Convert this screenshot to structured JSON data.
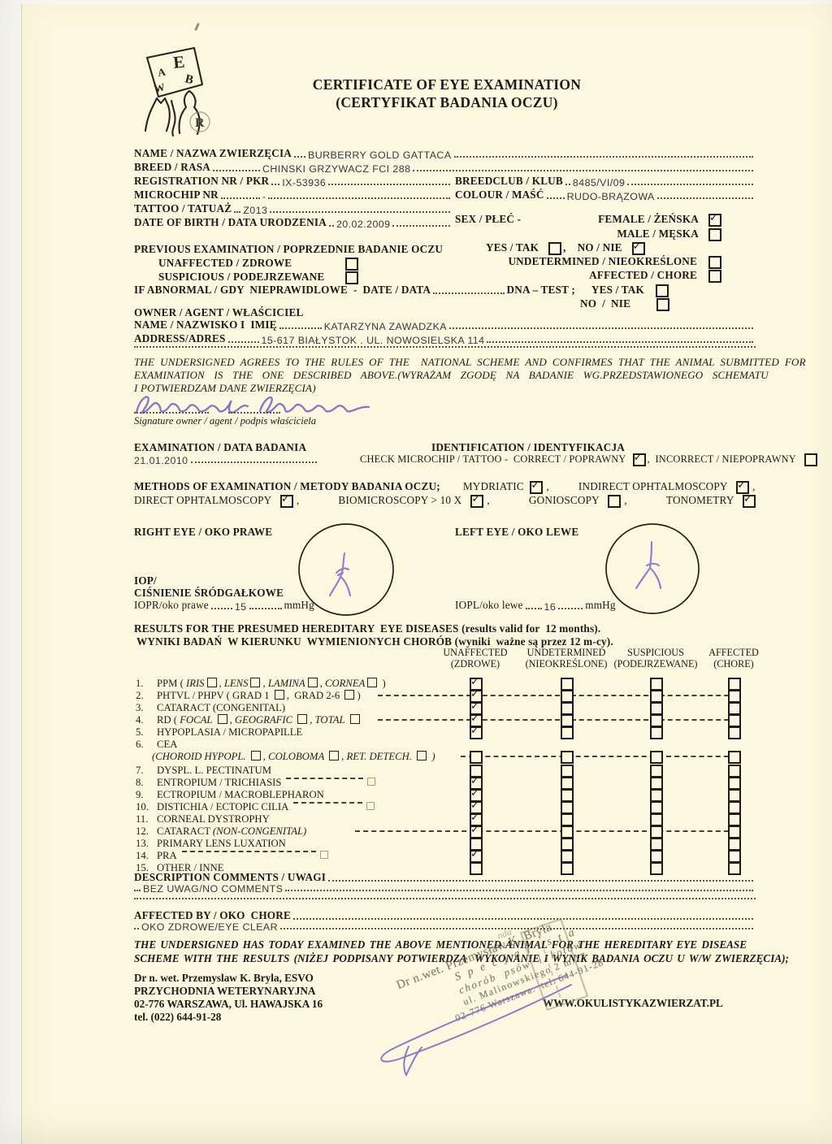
{
  "title": {
    "line1": "CERTIFICATE OF EYE EXAMINATION",
    "line2": "(CERTYFIKAT BADANIA OCZU)"
  },
  "logo": {
    "letters": [
      "E",
      "B",
      "A",
      "W",
      "R"
    ]
  },
  "animal": {
    "name_label": "NAME / NAZWA ZWIERZĘCIA",
    "name": "BURBERRY GOLD GATTACA",
    "breed_label": "BREED / RASA",
    "breed": "CHINSKI GRZYWACZ FCI 288",
    "reg_label": "REGISTRATION NR / PKR",
    "reg": "IX-53936",
    "microchip_label": "MICROCHIP NR",
    "microchip": "-",
    "tattoo_label": "TATTOO / TATUAŻ",
    "tattoo": "Z013",
    "dob_label": "DATE OF BIRTH / DATA URODZENIA",
    "dob": "20.02.2009",
    "breedclub_label": "BREEDCLUB / KLUB",
    "breedclub": "8485/VI/09",
    "colour_label": "COLOUR / MAŚĆ",
    "colour": "RUDO-BRĄZOWA",
    "sex_label": "SEX / PŁEĆ -",
    "female_label": "FEMALE / ŻEŃSKA",
    "male_label": "MALE / MĘSKA",
    "female_checked": true,
    "male_checked": false
  },
  "previous": {
    "head": "PREVIOUS EXAMINATION / POPRZEDNIE BADANIE OCZU",
    "yes_label": "YES / TAK",
    "no_label": "NO / NIE",
    "comma": ",",
    "yes_checked": false,
    "no_checked": true,
    "unaffected": "UNAFFECTED / ZDROWE",
    "suspicious": "SUSPICIOUS / PODEJRZEWANE",
    "undetermined": "UNDETERMINED / NIEOKREŚLONE",
    "affected": "AFFECTED / CHORE",
    "ifabnormal": "IF ABNORMAL / GDY  NIEPRAWIDLOWE  -  DATE / DATA",
    "dna": "DNA – TEST ;",
    "dna_yes": "YES / TAK",
    "dna_no": "NO  /  NIE"
  },
  "owner": {
    "head": "OWNER / AGENT / WŁAŚCICIEL",
    "name_label": "NAME / NAZWISKO I  IMIĘ",
    "name": "KATARZYNA ZAWADZKA",
    "address_label": "ADDRESS/ADRES",
    "address": "15-617 BIAŁYSTOK . UL. NOWOSIELSKA 114"
  },
  "agreement": {
    "lines": [
      "THE UNDERSIGNED AGREES TO THE RULES OF THE  NATIONAL SCHEME AND CONFIRMES THAT THE ANIMAL SUBMITTED FOR",
      "EXAMINATION IS THE ONE DESCRIBED ABOVE.(WYRAŻAM ZGODĘ NA BADANIE WG.PRZEDSTAWIONEGO SCHEMATU",
      "I POTWIERDZAM DANE ZWIERZĘCIA)"
    ],
    "signature_label": "Signature owner / agent / podpis właściciela"
  },
  "examination": {
    "head": "EXAMINATION / DATA BADANIA",
    "date": "21.01.2010"
  },
  "identification": {
    "head": "IDENTIFICATION / IDENTYFIKACJA",
    "check_label": "CHECK MICROCHIP / TATTOO -  CORRECT / POPRAWNY",
    "correct_checked": true,
    "incorrect_label": "INCORRECT / NIEPOPRAWNY",
    "incorrect_checked": false,
    "comma": ",  "
  },
  "methods": {
    "head": "METHODS OF EXAMINATION / METODY BADANIA OCZU;",
    "line1": [
      {
        "label": "MYDRIATIC ",
        "checked": true,
        "after": ","
      },
      {
        "label": "INDIRECT OPHTALMOSCOPY  ",
        "checked": true,
        "after": ","
      }
    ],
    "line2": [
      {
        "label": "DIRECT OPHTALMOSCOPY  ",
        "checked": true,
        "after": ","
      },
      {
        "label": "BIOMICROSCOPY > 10 X  ",
        "checked": true,
        "after": ","
      },
      {
        "label": "GONIOSCOPY  ",
        "checked": false,
        "after": ","
      },
      {
        "label": "TONOMETRY  ",
        "checked": true,
        "after": ""
      }
    ]
  },
  "eyes": {
    "right_label": "RIGHT EYE / OKO PRAWE",
    "left_label": "LEFT EYE / OKO LEWE",
    "iop1": "IOP/",
    "iop2": "CIŚNIENIE ŚRÓDGAŁKOWE",
    "iopr_label": "IOPR/oko prawe",
    "iopr": "15",
    "iopr_unit": "mmHg",
    "iopl_label": "IOPL/oko lewe",
    "iopl": "16",
    "iopl_unit": "mmHg"
  },
  "results": {
    "title1": "RESULTS FOR THE PRESUMED HEREDITARY  EYE DISEASES (results valid for  12 months).",
    "title2": "WYNIKI BADAŃ  W KIERUNKU  WYMIENIONYCH CHORÓB (wyniki  ważne są przez 12 m-cy).",
    "columns": [
      [
        "UNAFFECTED",
        "(ZDROWE)"
      ],
      [
        "UNDETERMINED",
        "(NIEOKREŚLONE)"
      ],
      [
        "SUSPICIOUS",
        "(PODEJRZEWANE)"
      ],
      [
        "AFFECTED",
        "(CHORE)"
      ]
    ],
    "rows": [
      {
        "n": "1.",
        "parts": [
          {
            "t": "PPM ( "
          },
          {
            "t": "IRIS",
            "i": 1
          },
          {
            "b": 1
          },
          {
            "t": ", "
          },
          {
            "t": "LENS",
            "i": 1
          },
          {
            "b": 1
          },
          {
            "t": ", "
          },
          {
            "t": "LAMINA",
            "i": 1
          },
          {
            "b": 1
          },
          {
            "t": ", "
          },
          {
            "t": "CORNEA",
            "i": 1
          },
          {
            "b": 1
          },
          {
            "t": " )"
          }
        ],
        "checks": [
          1,
          0,
          0,
          0
        ]
      },
      {
        "n": "2.",
        "parts": [
          {
            "t": "PHTVL / PHPV ( GRAD 1 "
          },
          {
            "b": 1
          },
          {
            "t": ",  GRAD 2-6 "
          },
          {
            "b": 1
          },
          {
            "t": ")"
          }
        ],
        "checks": [
          1,
          0,
          0,
          0
        ],
        "dash": 300
      },
      {
        "n": "3.",
        "parts": [
          {
            "t": "CATARACT (CONGENITAL)"
          }
        ],
        "checks": [
          1,
          0,
          0,
          0
        ]
      },
      {
        "n": "4.",
        "parts": [
          {
            "t": "RD ( "
          },
          {
            "t": "FOCAL",
            "i": 1
          },
          {
            "t": " "
          },
          {
            "b": 1
          },
          {
            "t": ", "
          },
          {
            "t": "GEOGRAFIC",
            "i": 1
          },
          {
            "t": " "
          },
          {
            "b": 1
          },
          {
            "t": ", "
          },
          {
            "t": "TOTAL",
            "i": 1
          },
          {
            "t": " "
          },
          {
            "b": 1
          }
        ],
        "checks": [
          1,
          0,
          0,
          0
        ],
        "dash": 300
      },
      {
        "n": "5.",
        "parts": [
          {
            "t": "HYPOPLASIA / MICROPAPILLE"
          }
        ],
        "checks": [
          1,
          0,
          0,
          0
        ]
      },
      {
        "n": "6.",
        "parts": [
          {
            "t": "CEA"
          }
        ]
      },
      {
        "n": "",
        "parts": [
          {
            "t": "(",
            "i": 1
          },
          {
            "t": "CHOROID HYPOPL. ",
            "i": 1
          },
          {
            "b": 1
          },
          {
            "t": ", ",
            "i": 1
          },
          {
            "t": "COLOBOMA ",
            "i": 1
          },
          {
            "b": 1
          },
          {
            "t": ", ",
            "i": 1
          },
          {
            "t": "RET. DETECH. ",
            "i": 1
          },
          {
            "b": 1
          },
          {
            "t": " )",
            "i": 1
          }
        ],
        "checks": [
          0,
          0,
          0,
          0
        ],
        "dash": 402,
        "sub": 1
      },
      {
        "n": "7.",
        "parts": [
          {
            "t": "DYSPL. L. PECTINATUM"
          }
        ],
        "checks": [
          0,
          0,
          0,
          0
        ]
      },
      {
        "n": "8.",
        "parts": [
          {
            "t": "ENTROPIUM / TRICHIASIS"
          }
        ],
        "checks": [
          1,
          0,
          0,
          0
        ],
        "tail": 95
      },
      {
        "n": "9.",
        "parts": [
          {
            "t": "ECTROPIUM / MACROBLEPHARON"
          }
        ],
        "checks": [
          1,
          0,
          0,
          0
        ]
      },
      {
        "n": "10.",
        "parts": [
          {
            "t": "DISTICHIA / ECTOPIC CILIA"
          }
        ],
        "checks": [
          1,
          0,
          0,
          0
        ],
        "tail": 85
      },
      {
        "n": "11.",
        "parts": [
          {
            "t": "CORNEAL DYSTROPHY"
          }
        ],
        "checks": [
          1,
          0,
          0,
          0
        ]
      },
      {
        "n": "12.",
        "parts": [
          {
            "t": "CATARACT "
          },
          {
            "t": "(NON-CONGENITAL)",
            "i": 1
          }
        ],
        "checks": [
          1,
          0,
          0,
          0
        ],
        "dash": 272
      },
      {
        "n": "13.",
        "parts": [
          {
            "t": "PRIMARY LENS LUXATION"
          }
        ],
        "checks": [
          0,
          0,
          0,
          0
        ]
      },
      {
        "n": "14.",
        "parts": [
          {
            "t": "PRA"
          }
        ],
        "checks": [
          1,
          0,
          0,
          0
        ],
        "tail": 165
      },
      {
        "n": "15.",
        "parts": [
          {
            "t": "OTHER / INNE"
          }
        ],
        "checks": [
          0,
          0,
          0,
          0
        ]
      }
    ]
  },
  "comments": {
    "desc_label": "DESCRIPTION COMMENTS / UWAGI",
    "desc": "BEZ UWAG/NO COMMENTS",
    "affected_label": "AFFECTED BY / OKO  CHORE",
    "affected": "OKO ZDROWE/EYE CLEAR"
  },
  "undersigned": {
    "lines": [
      "THE UNDERSIGNED HAS TODAY EXAMINED THE ABOVE MENTIONED ANIMAL FOR THE HEREDITARY EYE DISEASE",
      "SCHEME WITH THE RESULTS (NIŻEJ PODPISANY POTWIERDZA  WYKONANIE I WYNIK BADANIA OCZU U W/W ZWIERZĘCIA);"
    ]
  },
  "footer": {
    "lines": [
      "Dr n. wet. Przemyslaw K. Bryla, ESVO",
      "PRZYCHODNIA WETERYNARYJNA",
      "02-776 WARSZAWA, Ul. HAWAJSKA 16",
      "tel. (022) 644-91-28"
    ],
    "website": "WWW.OKULISTYKAZWIERZAT.PL"
  },
  "stamp": {
    "lines": [
      "Dr n.wet. Przemysław K. Bryła",
      "S p e c j a l i s t a",
      "chorób  psów  i  kotów",
      "ul. Malinowskiego 2 m.17",
      "02-776 Warszawa.  tel. 644-91-28"
    ],
    "ghost": "nda"
  },
  "colors": {
    "page": "#fcf8df",
    "ink": "#1b1a17",
    "typed": "#34383d",
    "blue_ink": "#7b70c5",
    "stamp": "#6c6556"
  }
}
